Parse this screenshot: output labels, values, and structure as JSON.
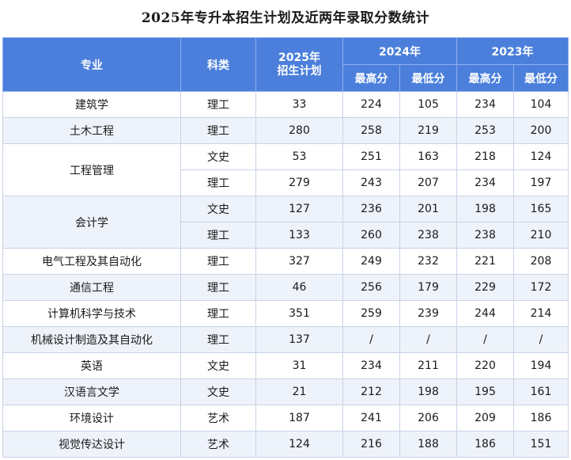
{
  "title": "2025年专升本招生计划及近两年录取分数统计",
  "header": {
    "major": "专业",
    "category": "科类",
    "plan_line1": "2025年",
    "plan_line2": "招生计划",
    "year_a": "2024年",
    "year_b": "2023年",
    "max_a": "最高分",
    "min_a": "最低分",
    "max_b": "最高分",
    "min_b": "最低分"
  },
  "majors": [
    {
      "name": "建筑学",
      "rows": [
        {
          "category": "理工",
          "plan": "33",
          "max2024": "224",
          "min2024": "105",
          "max2023": "234",
          "min2023": "104"
        }
      ]
    },
    {
      "name": "土木工程",
      "rows": [
        {
          "category": "理工",
          "plan": "280",
          "max2024": "258",
          "min2024": "219",
          "max2023": "253",
          "min2023": "200"
        }
      ]
    },
    {
      "name": "工程管理",
      "rows": [
        {
          "category": "文史",
          "plan": "53",
          "max2024": "251",
          "min2024": "163",
          "max2023": "218",
          "min2023": "124"
        },
        {
          "category": "理工",
          "plan": "279",
          "max2024": "243",
          "min2024": "207",
          "max2023": "234",
          "min2023": "197"
        }
      ]
    },
    {
      "name": "会计学",
      "rows": [
        {
          "category": "文史",
          "plan": "127",
          "max2024": "236",
          "min2024": "201",
          "max2023": "198",
          "min2023": "165"
        },
        {
          "category": "理工",
          "plan": "133",
          "max2024": "260",
          "min2024": "238",
          "max2023": "238",
          "min2023": "210"
        }
      ]
    },
    {
      "name": "电气工程及其自动化",
      "rows": [
        {
          "category": "理工",
          "plan": "327",
          "max2024": "249",
          "min2024": "232",
          "max2023": "221",
          "min2023": "208"
        }
      ]
    },
    {
      "name": "通信工程",
      "rows": [
        {
          "category": "理工",
          "plan": "46",
          "max2024": "256",
          "min2024": "179",
          "max2023": "229",
          "min2023": "172"
        }
      ]
    },
    {
      "name": "计算机科学与技术",
      "rows": [
        {
          "category": "理工",
          "plan": "351",
          "max2024": "259",
          "min2024": "239",
          "max2023": "244",
          "min2023": "214"
        }
      ]
    },
    {
      "name": "机械设计制造及其自动化",
      "rows": [
        {
          "category": "理工",
          "plan": "137",
          "max2024": "/",
          "min2024": "/",
          "max2023": "/",
          "min2023": "/"
        }
      ]
    },
    {
      "name": "英语",
      "rows": [
        {
          "category": "文史",
          "plan": "31",
          "max2024": "234",
          "min2024": "211",
          "max2023": "220",
          "min2023": "194"
        }
      ]
    },
    {
      "name": "汉语言文学",
      "rows": [
        {
          "category": "文史",
          "plan": "21",
          "max2024": "212",
          "min2024": "198",
          "max2023": "195",
          "min2023": "161"
        }
      ]
    },
    {
      "name": "环境设计",
      "rows": [
        {
          "category": "艺术",
          "plan": "187",
          "max2024": "241",
          "min2024": "206",
          "max2023": "209",
          "min2023": "186"
        }
      ]
    },
    {
      "name": "视觉传达设计",
      "rows": [
        {
          "category": "艺术",
          "plan": "124",
          "max2024": "216",
          "min2024": "188",
          "max2023": "186",
          "min2023": "151"
        }
      ]
    }
  ]
}
